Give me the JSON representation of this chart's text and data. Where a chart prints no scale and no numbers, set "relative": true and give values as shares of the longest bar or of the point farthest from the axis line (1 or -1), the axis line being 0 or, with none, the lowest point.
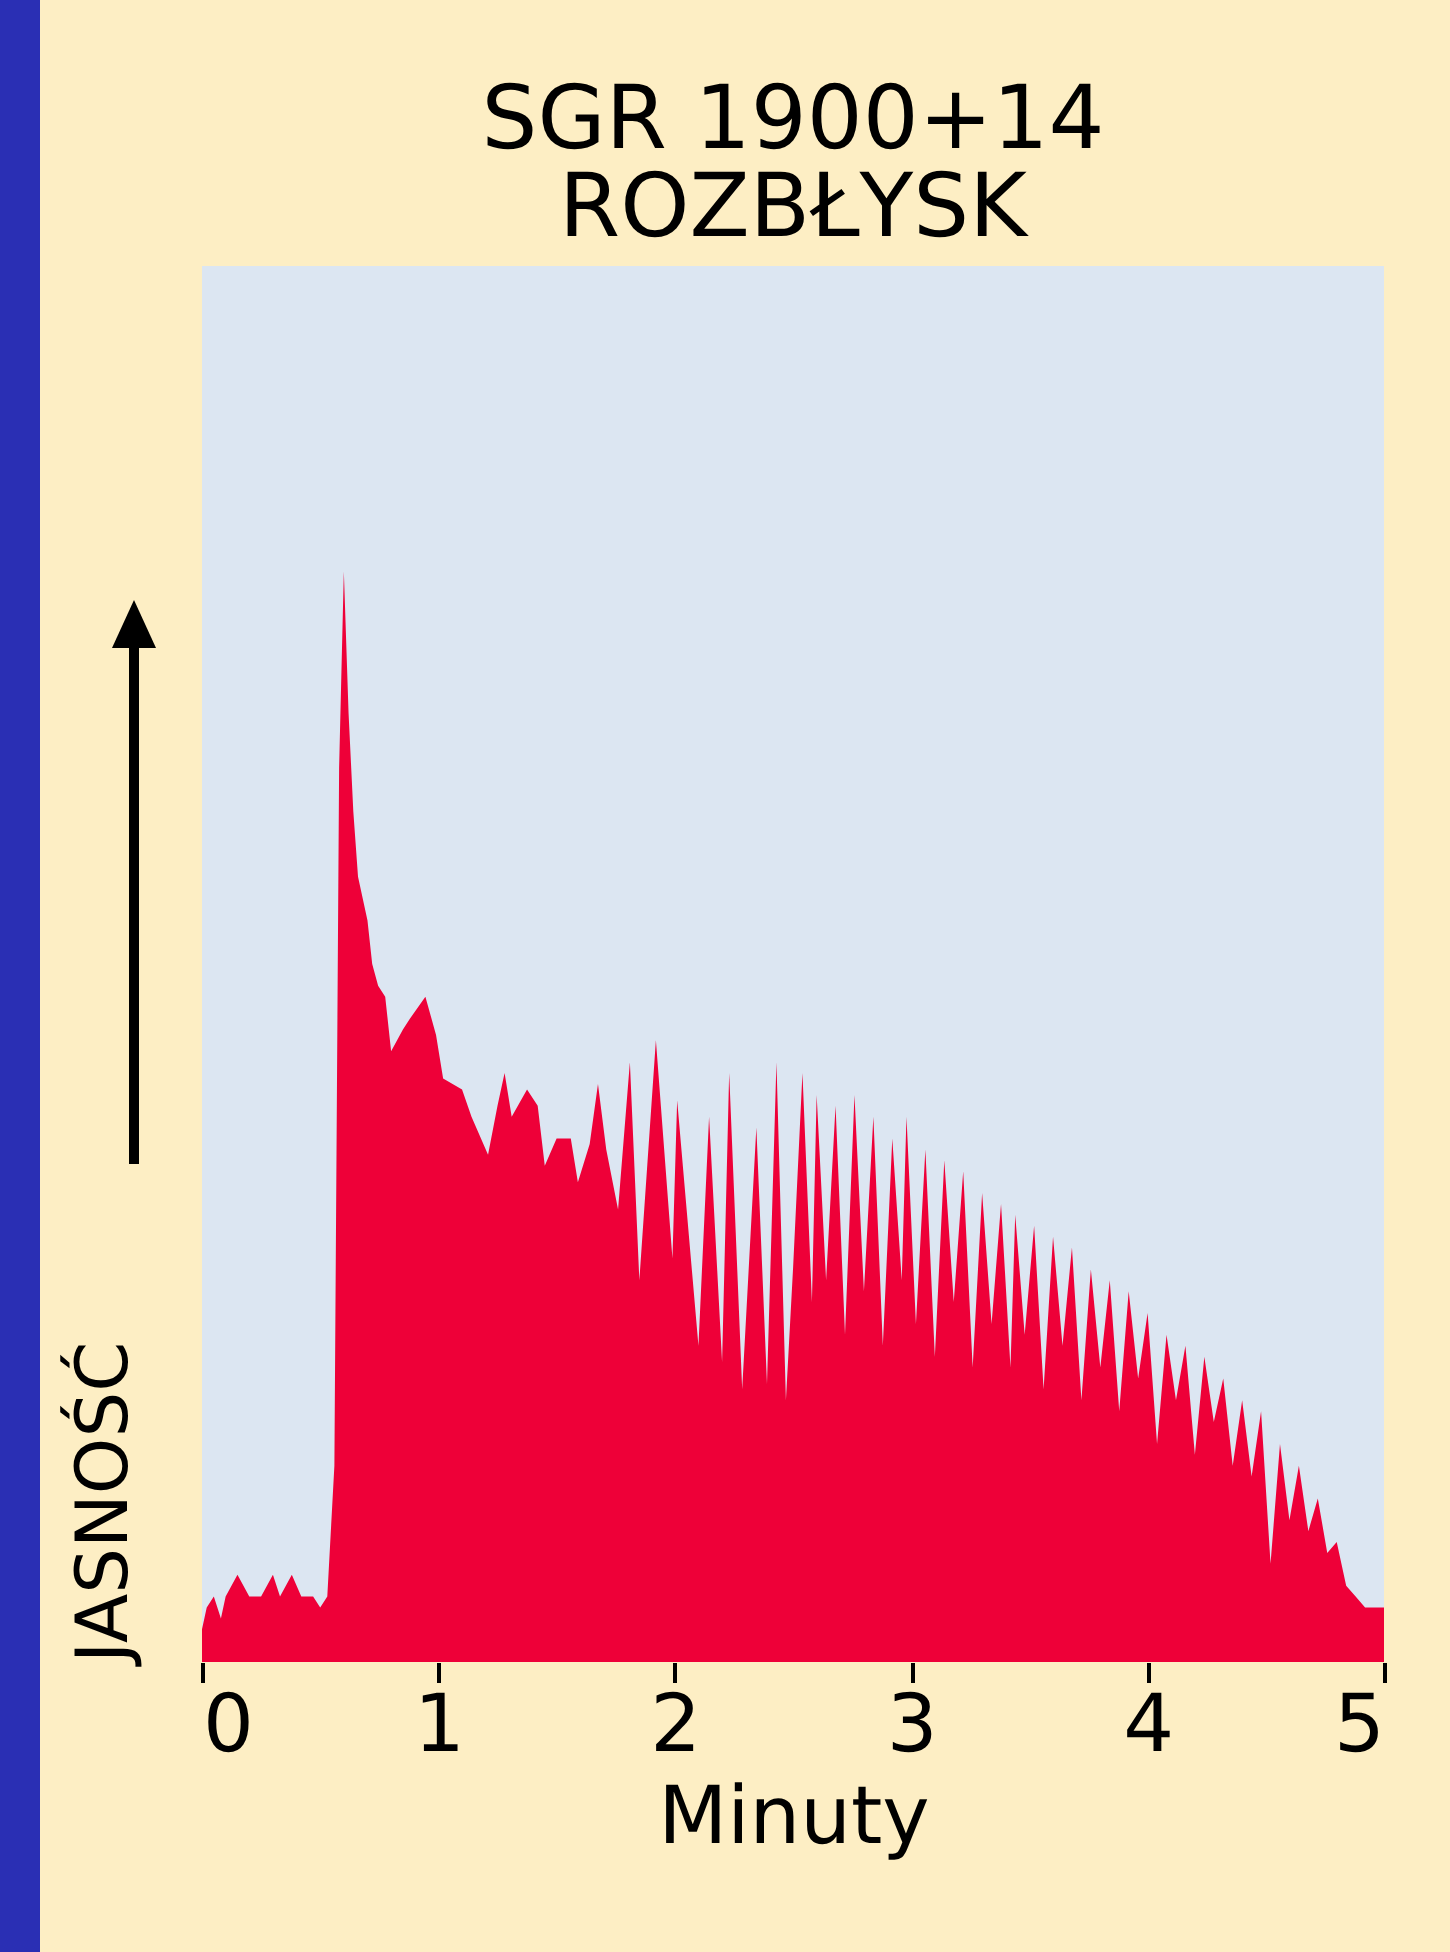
{
  "chart_data": {
    "type": "area",
    "title": "SGR 1900+14\nROZBŁYSK",
    "xlabel": "Minuty",
    "ylabel": "JASNOŚĆ",
    "relative": true,
    "color": "#ee0038",
    "xlim": [
      0,
      5
    ],
    "xticks": [
      0,
      1,
      2,
      3,
      4,
      5
    ],
    "grid": false,
    "x": [
      0,
      0.02,
      0.05,
      0.08,
      0.1,
      0.15,
      0.2,
      0.25,
      0.3,
      0.33,
      0.38,
      0.42,
      0.47,
      0.5,
      0.53,
      0.56,
      0.58,
      0.6,
      0.62,
      0.64,
      0.66,
      0.7,
      0.72,
      0.745,
      0.775,
      0.8,
      0.85,
      0.88,
      0.945,
      0.99,
      1.02,
      1.1,
      1.14,
      1.21,
      1.25,
      1.28,
      1.31,
      1.375,
      1.42,
      1.45,
      1.5,
      1.56,
      1.59,
      1.64,
      1.675,
      1.71,
      1.76,
      1.81,
      1.85,
      1.92,
      1.99,
      2.01,
      2.1,
      2.145,
      2.2,
      2.23,
      2.285,
      2.345,
      2.39,
      2.43,
      2.47,
      2.5,
      2.54,
      2.58,
      2.6,
      2.64,
      2.68,
      2.72,
      2.76,
      2.8,
      2.84,
      2.88,
      2.92,
      2.96,
      2.98,
      3.02,
      3.06,
      3.1,
      3.14,
      3.18,
      3.22,
      3.26,
      3.3,
      3.34,
      3.38,
      3.42,
      3.44,
      3.48,
      3.52,
      3.56,
      3.6,
      3.64,
      3.68,
      3.72,
      3.76,
      3.8,
      3.84,
      3.88,
      3.92,
      3.96,
      4.0,
      4.04,
      4.08,
      4.12,
      4.16,
      4.2,
      4.24,
      4.28,
      4.32,
      4.36,
      4.4,
      4.44,
      4.48,
      4.52,
      4.56,
      4.6,
      4.64,
      4.68,
      4.72,
      4.76,
      4.8,
      4.84,
      4.88,
      4.92,
      5.0
    ],
    "values": [
      0.03,
      0.05,
      0.06,
      0.04,
      0.06,
      0.08,
      0.06,
      0.06,
      0.08,
      0.06,
      0.08,
      0.06,
      0.06,
      0.05,
      0.06,
      0.18,
      0.82,
      1.0,
      0.87,
      0.78,
      0.72,
      0.68,
      0.64,
      0.62,
      0.61,
      0.56,
      0.58,
      0.59,
      0.61,
      0.575,
      0.535,
      0.525,
      0.5,
      0.465,
      0.51,
      0.54,
      0.5,
      0.525,
      0.51,
      0.455,
      0.48,
      0.48,
      0.44,
      0.475,
      0.53,
      0.47,
      0.415,
      0.55,
      0.35,
      0.57,
      0.37,
      0.515,
      0.29,
      0.5,
      0.275,
      0.54,
      0.25,
      0.49,
      0.255,
      0.55,
      0.24,
      0.36,
      0.54,
      0.33,
      0.52,
      0.35,
      0.51,
      0.3,
      0.52,
      0.34,
      0.5,
      0.29,
      0.48,
      0.35,
      0.5,
      0.31,
      0.47,
      0.28,
      0.46,
      0.33,
      0.45,
      0.27,
      0.43,
      0.31,
      0.42,
      0.27,
      0.41,
      0.3,
      0.4,
      0.25,
      0.39,
      0.29,
      0.38,
      0.24,
      0.36,
      0.27,
      0.35,
      0.23,
      0.34,
      0.26,
      0.32,
      0.2,
      0.3,
      0.24,
      0.29,
      0.19,
      0.28,
      0.22,
      0.26,
      0.18,
      0.24,
      0.17,
      0.23,
      0.09,
      0.2,
      0.13,
      0.18,
      0.12,
      0.15,
      0.1,
      0.11,
      0.07,
      0.06,
      0.05,
      0.05
    ]
  }
}
